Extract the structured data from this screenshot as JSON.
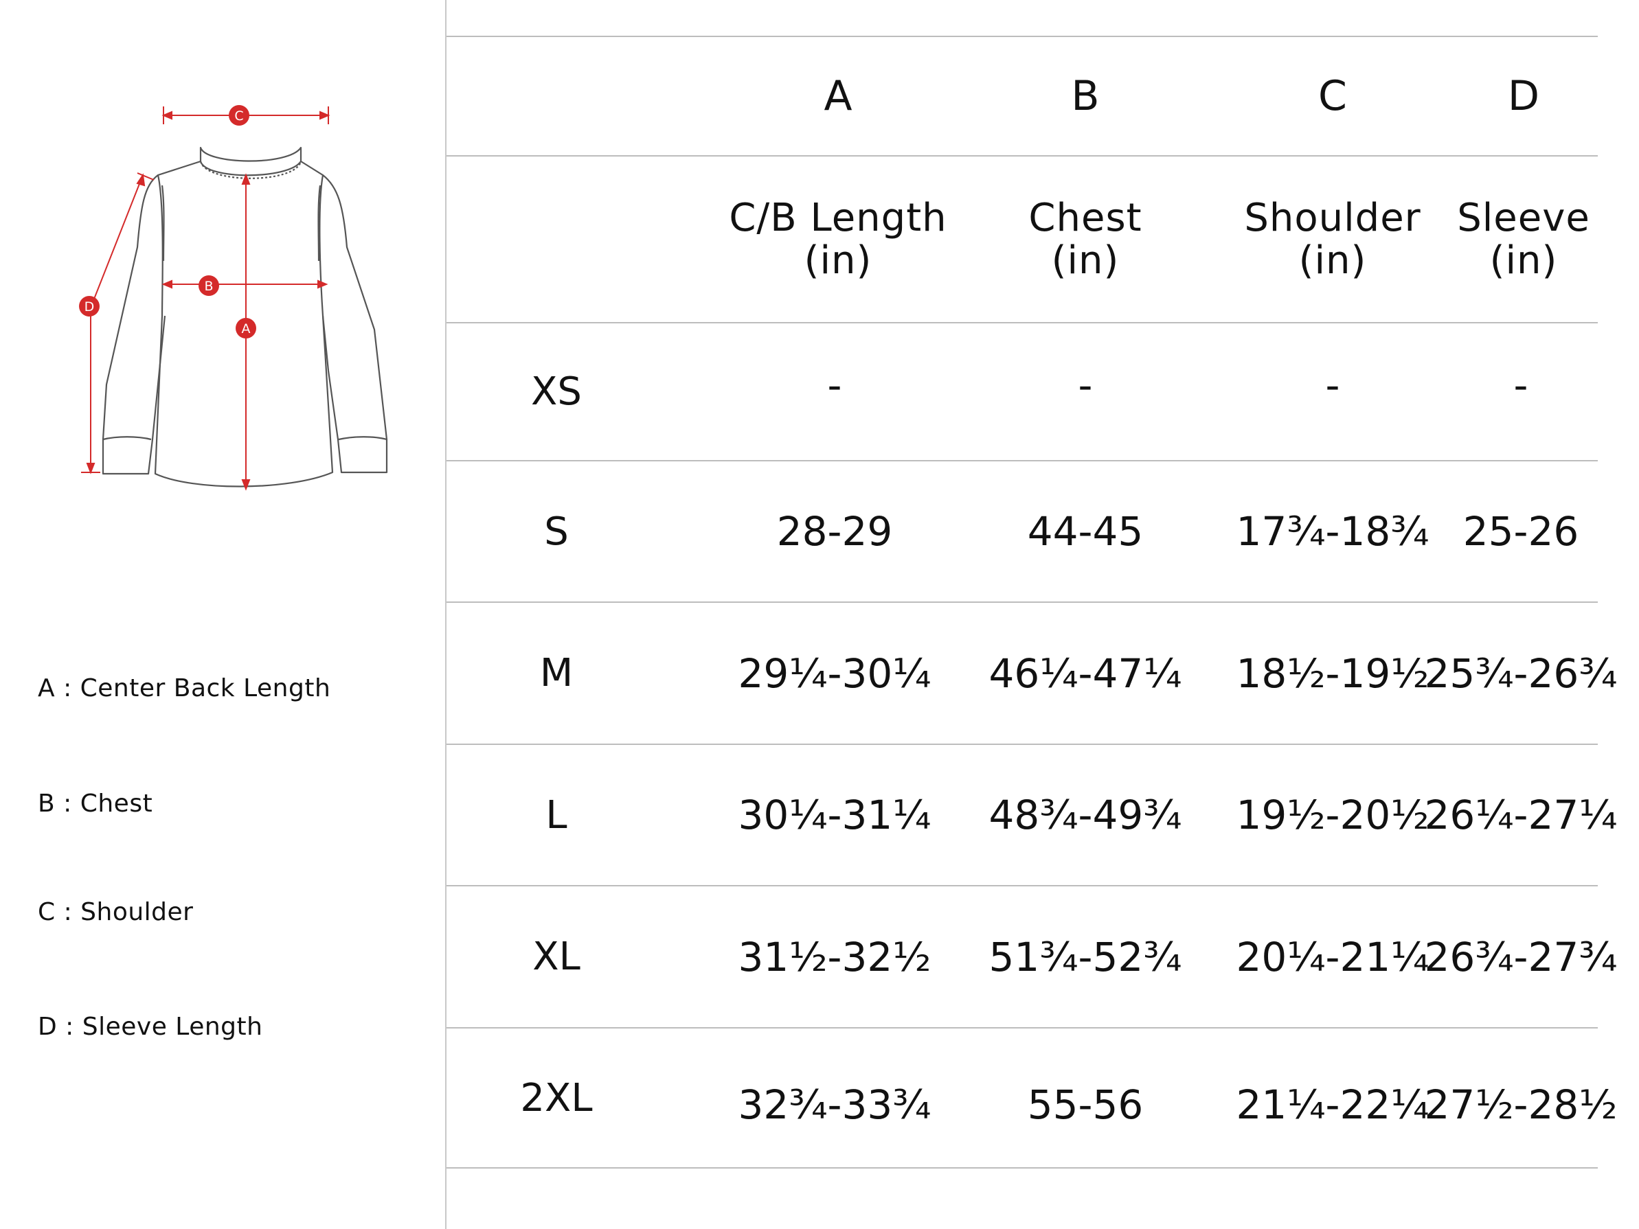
{
  "diagram": {
    "markers": [
      "A",
      "B",
      "C",
      "D"
    ],
    "accent_color": "#d42a2a",
    "line_color": "#555555"
  },
  "legend": [
    {
      "text": "A : Center Back Length"
    },
    {
      "text": "B : Chest"
    },
    {
      "text": "C : Shoulder"
    },
    {
      "text": "D : Sleeve Length"
    }
  ],
  "table": {
    "letters": [
      "A",
      "B",
      "C",
      "D"
    ],
    "headers": [
      {
        "line1": "C/B Length",
        "line2": "(in)"
      },
      {
        "line1": "Chest",
        "line2": "(in)"
      },
      {
        "line1": "Shoulder",
        "line2": "(in)"
      },
      {
        "line1": "Sleeve",
        "line2": "(in)"
      }
    ],
    "rows": [
      {
        "size": "XS",
        "values": [
          "-",
          "-",
          "-",
          "-"
        ]
      },
      {
        "size": "S",
        "values": [
          "28-29",
          "44-45",
          "17¾-18¾",
          "25-26"
        ]
      },
      {
        "size": "M",
        "values": [
          "29¼-30¼",
          "46¼-47¼",
          "18½-19½",
          "25¾-26¾"
        ]
      },
      {
        "size": "L",
        "values": [
          "30¼-31¼",
          "48¾-49¾",
          "19½-20½",
          "26¼-27¼"
        ]
      },
      {
        "size": "XL",
        "values": [
          "31½-32½",
          "51¾-52¾",
          "20¼-21¼",
          "26¾-27¾"
        ]
      },
      {
        "size": "2XL",
        "values": [
          "32¾-33¾",
          "55-56",
          "21¼-22¼",
          "27½-28½"
        ]
      }
    ]
  }
}
